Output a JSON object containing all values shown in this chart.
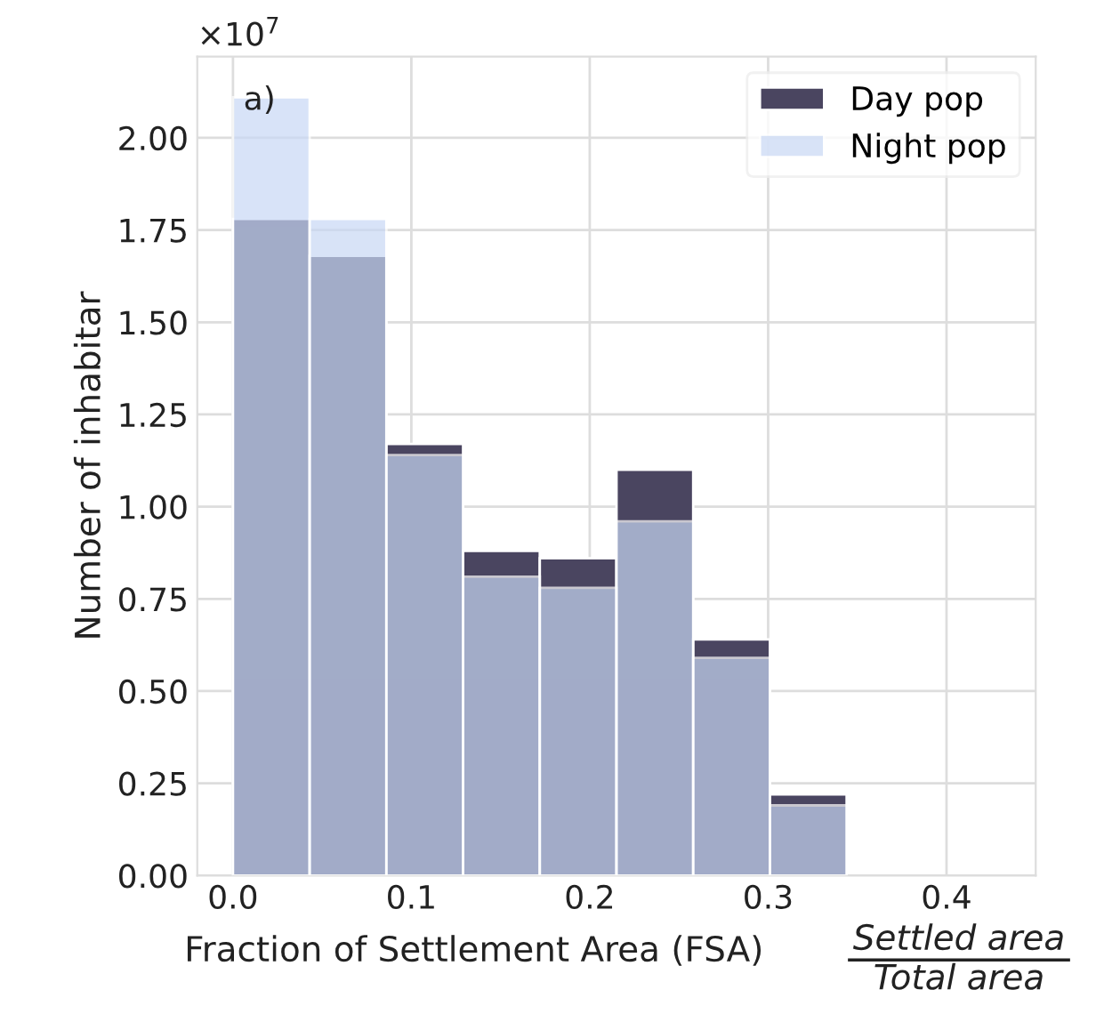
{
  "chart_data": {
    "type": "histogram",
    "xlabel": "Fraction of Settlement Area (FSA)",
    "ylabel": "Number of inhabitar",
    "annotations": [
      "a)",
      "×10$^{7}$",
      "Settled area",
      "Total area"
    ],
    "bins": [
      0,
      0.043,
      0.086,
      0.129,
      0.172,
      0.215,
      0.258,
      0.301,
      0.344
    ],
    "series": [
      {
        "name": "Day pop",
        "color": "#4a4560",
        "values": [
          1.78,
          1.68,
          1.17,
          0.88,
          0.86,
          1.1,
          0.64,
          0.22
        ]
      },
      {
        "name": "Night pop",
        "color": "#c8d8f5",
        "values": [
          2.11,
          1.78,
          1.14,
          0.81,
          0.78,
          0.96,
          0.59,
          0.19
        ]
      }
    ],
    "xlim": [
      -0.02,
      0.45
    ],
    "ylim": [
      0,
      2.22
    ],
    "xticks": [
      {
        "value": 0,
        "label": "0.0"
      },
      0.1,
      0.2,
      0.3,
      0.4
    ],
    "yticks": [
      {
        "value": 0,
        "label": "0.00"
      },
      {
        "value": 0.25,
        "label": "0.25"
      },
      {
        "value": 0.5,
        "label": "0.50"
      },
      {
        "value": 0.75,
        "label": "0.75"
      },
      {
        "value": 1,
        "label": "1.00"
      },
      {
        "value": 1.25,
        "label": "1.25"
      },
      {
        "value": 1.5,
        "label": "1.50"
      },
      {
        "value": 1.75,
        "label": "1.75"
      },
      {
        "value": 2,
        "label": "2.00"
      }
    ],
    "grid": true,
    "legend": "top right"
  }
}
